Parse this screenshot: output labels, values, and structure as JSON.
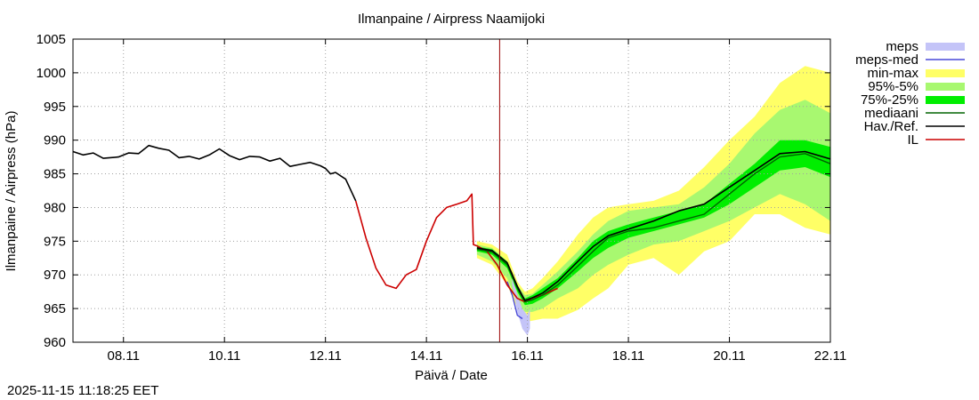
{
  "timestamp": "2025-11-15 11:18:25 EET",
  "colors": {
    "meps": "#c4c4f8",
    "meps_med": "#4848d8",
    "min_max": "#ffff66",
    "p95_5": "#a8f870",
    "p75_25": "#00ee00",
    "mediaani": "#006400",
    "hav_ref": "#000000",
    "il": "#cc0000",
    "now_line": "#990000"
  },
  "chart_data": {
    "type": "area",
    "title": "Ilmanpaine / Airpress Naamijoki",
    "xlabel": "Päivä / Date",
    "ylabel": "Ilmanpaine / Airpress (hPa)",
    "xlim": [
      7.0,
      22.0
    ],
    "ylim": [
      960,
      1005
    ],
    "xticks": [
      {
        "value": 8,
        "label": "08.11"
      },
      {
        "value": 10,
        "label": "10.11"
      },
      {
        "value": 12,
        "label": "12.11"
      },
      {
        "value": 14,
        "label": "14.11"
      },
      {
        "value": 16,
        "label": "16.11"
      },
      {
        "value": 18,
        "label": "18.11"
      },
      {
        "value": 20,
        "label": "20.11"
      },
      {
        "value": 22,
        "label": "22.11"
      }
    ],
    "yticks": [
      960,
      965,
      970,
      975,
      980,
      985,
      990,
      995,
      1000,
      1005
    ],
    "grid": true,
    "legend_position": "right-outside-top",
    "now_x": 15.45,
    "legend": [
      {
        "key": "meps",
        "label": "meps",
        "kind": "box"
      },
      {
        "key": "meps_med",
        "label": "meps-med",
        "kind": "line"
      },
      {
        "key": "min_max",
        "label": "min-max",
        "kind": "box"
      },
      {
        "key": "p95_5",
        "label": "95%-5%",
        "kind": "box"
      },
      {
        "key": "p75_25",
        "label": "75%-25%",
        "kind": "box"
      },
      {
        "key": "mediaani",
        "label": "mediaani",
        "kind": "line"
      },
      {
        "key": "hav_ref",
        "label": "Hav./Ref.",
        "kind": "line"
      },
      {
        "key": "il",
        "label": "IL",
        "kind": "line"
      }
    ],
    "forecast_x": [
      15.0,
      15.3,
      15.6,
      15.8,
      15.95,
      16.1,
      16.3,
      16.6,
      17.0,
      17.3,
      17.6,
      18.0,
      18.5,
      19.0,
      19.5,
      20.0,
      20.5,
      21.0,
      21.5,
      22.0
    ],
    "bands": {
      "min_max": {
        "low": [
          972.5,
          971.5,
          968.5,
          965.0,
          963.0,
          963.2,
          963.5,
          963.5,
          964.8,
          966.5,
          968.0,
          971.5,
          972.5,
          970.0,
          973.5,
          975.0,
          979.0,
          979.0,
          977.0,
          976.0
        ],
        "high": [
          975.0,
          974.5,
          973.0,
          969.0,
          967.5,
          968.0,
          969.5,
          972.0,
          976.0,
          978.5,
          980.0,
          980.5,
          981.0,
          982.5,
          986.0,
          990.0,
          993.5,
          998.5,
          1001.0,
          1000.0
        ]
      },
      "p95_5": {
        "low": [
          973.0,
          972.0,
          969.5,
          966.0,
          964.5,
          964.5,
          965.0,
          966.5,
          968.0,
          970.0,
          971.5,
          973.0,
          974.5,
          975.0,
          976.5,
          978.0,
          980.0,
          982.0,
          980.5,
          978.0
        ],
        "high": [
          974.5,
          974.0,
          972.0,
          968.5,
          967.0,
          967.2,
          968.5,
          970.5,
          973.5,
          976.0,
          978.0,
          979.5,
          980.0,
          980.5,
          983.0,
          986.5,
          991.0,
          994.5,
          996.0,
          994.0
        ]
      },
      "p75_25": {
        "low": [
          973.5,
          973.0,
          971.0,
          967.5,
          965.5,
          965.7,
          966.5,
          968.0,
          970.5,
          972.5,
          974.0,
          975.5,
          976.5,
          977.5,
          978.5,
          980.5,
          983.0,
          985.5,
          986.0,
          984.5
        ],
        "high": [
          974.2,
          973.8,
          972.0,
          968.2,
          966.5,
          967.0,
          968.0,
          969.5,
          972.5,
          975.0,
          976.5,
          977.5,
          978.5,
          979.5,
          980.5,
          983.5,
          986.5,
          990.0,
          990.0,
          989.0
        ]
      },
      "meps": {
        "x": [
          15.7,
          15.8,
          15.9,
          16.0,
          16.05
        ],
        "low": [
          968.5,
          964.5,
          962.0,
          961.0,
          962.0
        ],
        "high": [
          969.5,
          967.0,
          965.0,
          964.0,
          965.0
        ]
      }
    },
    "series": [
      {
        "key": "hav_ref",
        "x": [
          7.0,
          7.2,
          7.4,
          7.6,
          7.9,
          8.1,
          8.3,
          8.5,
          8.7,
          8.9,
          9.1,
          9.3,
          9.5,
          9.7,
          9.9,
          10.1,
          10.3,
          10.5,
          10.7,
          10.9,
          11.1,
          11.3,
          11.5,
          11.7,
          11.9,
          12.0,
          12.1,
          12.2,
          12.4,
          12.6
        ],
        "y": [
          988.3,
          987.8,
          988.1,
          987.3,
          987.5,
          988.1,
          988.0,
          989.2,
          988.8,
          988.5,
          987.4,
          987.6,
          987.2,
          987.8,
          988.7,
          987.7,
          987.1,
          987.6,
          987.5,
          986.9,
          987.3,
          986.1,
          986.4,
          986.7,
          986.2,
          985.8,
          985.0,
          985.2,
          984.2,
          981.0
        ]
      },
      {
        "key": "il",
        "x": [
          12.6,
          12.8,
          13.0,
          13.2,
          13.4,
          13.6,
          13.8,
          14.0,
          14.2,
          14.4,
          14.6,
          14.8,
          14.9,
          14.93,
          15.0,
          15.2,
          15.4,
          15.6,
          15.8,
          15.95,
          16.1,
          16.3,
          16.6
        ],
        "y": [
          981.0,
          975.5,
          971.0,
          968.5,
          968.0,
          970.0,
          970.8,
          975.0,
          978.5,
          980.0,
          980.5,
          981.0,
          982.0,
          974.5,
          974.3,
          973.5,
          971.5,
          968.5,
          966.5,
          966.0,
          966.6,
          967.0,
          968.0
        ]
      },
      {
        "key": "meps_med",
        "x": [
          15.6,
          15.7,
          15.8,
          15.9
        ],
        "y": [
          969.0,
          967.0,
          964.0,
          963.5
        ]
      },
      {
        "key": "mediaani",
        "x": [
          15.0,
          15.3,
          15.6,
          15.8,
          15.95,
          16.1,
          16.3,
          16.6,
          17.0,
          17.3,
          17.6,
          18.0,
          18.5,
          19.0,
          19.5,
          20.0,
          20.5,
          21.0,
          21.5,
          22.0
        ],
        "y": [
          973.8,
          973.4,
          971.5,
          968.0,
          966.0,
          966.3,
          967.0,
          968.5,
          971.3,
          973.5,
          975.5,
          976.5,
          977.0,
          978.0,
          979.0,
          982.0,
          985.0,
          987.5,
          988.0,
          986.5
        ]
      },
      {
        "key": "hav_ref",
        "x": [
          15.0,
          15.3,
          15.6,
          15.8,
          15.95,
          16.1,
          16.3,
          16.6,
          17.0,
          17.3,
          17.6,
          18.0,
          18.5,
          19.0,
          19.5,
          20.0,
          20.5,
          21.0,
          21.5,
          22.0
        ],
        "y": [
          974.0,
          973.6,
          971.8,
          968.3,
          966.2,
          966.6,
          967.3,
          969.0,
          972.0,
          974.2,
          975.8,
          976.8,
          978.0,
          979.5,
          980.5,
          983.0,
          985.5,
          988.0,
          988.3,
          987.2
        ]
      }
    ]
  }
}
